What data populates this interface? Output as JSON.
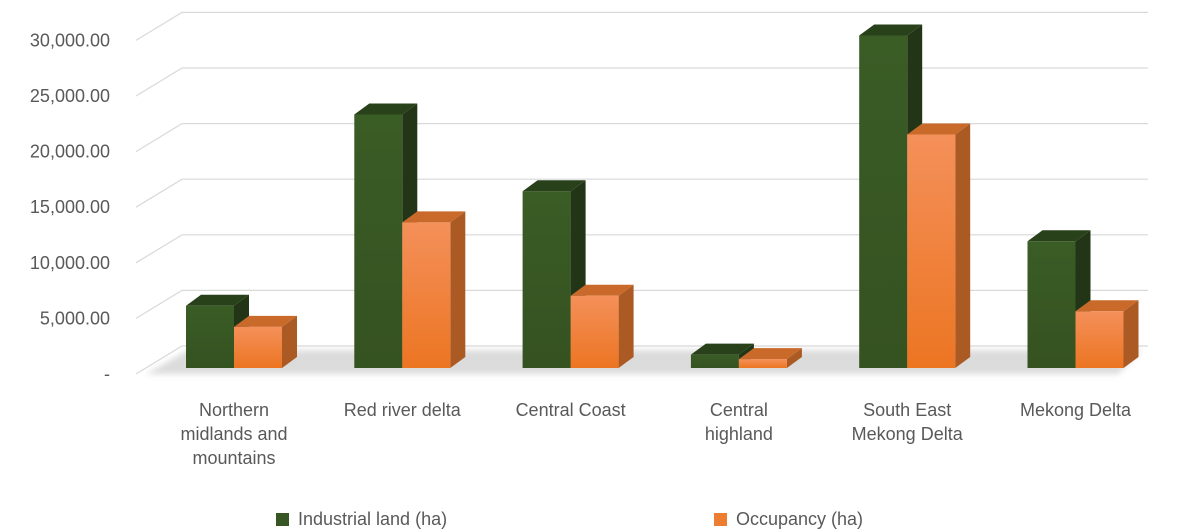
{
  "chart_data": {
    "type": "bar",
    "categories": [
      "Northern midlands and mountains",
      "Red river delta",
      "Central Coast",
      "Central highland",
      "South East Mekong Delta",
      "Mekong Delta"
    ],
    "category_label_lines": [
      [
        "Northern",
        "midlands and",
        "mountains"
      ],
      [
        "Red river delta"
      ],
      [
        "Central Coast"
      ],
      [
        "Central",
        "highland"
      ],
      [
        "South East",
        "Mekong Delta"
      ],
      [
        "Mekong Delta"
      ]
    ],
    "series": [
      {
        "name": "Industrial land (ha)",
        "color": "#375623",
        "values": [
          5600,
          22800,
          15900,
          1200,
          29900,
          11400
        ]
      },
      {
        "name": "Occupancy (ha)",
        "color": "#ED7D31",
        "values": [
          3700,
          13100,
          6500,
          800,
          21000,
          5100
        ]
      }
    ],
    "y_ticks": [
      0,
      5000,
      10000,
      15000,
      20000,
      25000,
      30000
    ],
    "y_tick_labels": [
      "-",
      "5,000.00",
      "10,000.00",
      "15,000.00",
      "20,000.00",
      "25,000.00",
      "30,000.00"
    ],
    "ylim": [
      0,
      32000
    ],
    "grid": true,
    "legend_position": "bottom",
    "style": "3d-clustered-column"
  }
}
